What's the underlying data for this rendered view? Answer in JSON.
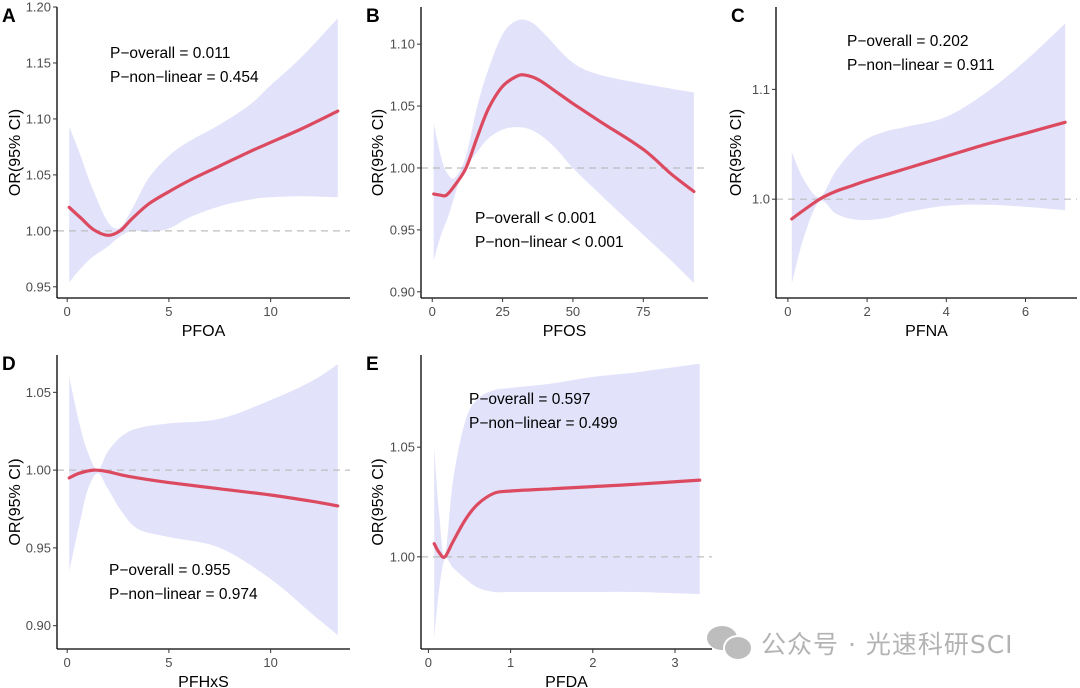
{
  "figure": {
    "ylabel": "OR(95% CI)",
    "watermark": "公众号 · 光速科研SCI",
    "colors": {
      "curve": "#dc4a60",
      "band": "#e2e2fb",
      "reference": "#bdbdbd",
      "axis": "#000000"
    }
  },
  "chart_data": [
    {
      "type": "line",
      "panel": "A",
      "xlabel": "PFOA",
      "ylabel": "OR(95% CI)",
      "xlim": [
        -0.5,
        13.9
      ],
      "ylim": [
        0.94,
        1.2
      ],
      "xticks": [
        0,
        5,
        10
      ],
      "yticks": [
        0.95,
        1.0,
        1.05,
        1.1,
        1.15,
        1.2
      ],
      "ytick_labels": [
        "0.95",
        "1.00",
        "1.05",
        "1.10",
        "1.15",
        "1.20"
      ],
      "reference_line": 1.0,
      "annotations": [
        "P−overall = 0.011",
        "P−non−linear = 0.454"
      ],
      "annotation_position": "top-left",
      "series": [
        {
          "name": "OR",
          "x": [
            0.1,
            0.7,
            1.3,
            2.0,
            2.6,
            3.2,
            4.0,
            5.0,
            6.0,
            7.5,
            9.0,
            10.0,
            11.5,
            13.3
          ],
          "y": [
            1.021,
            1.011,
            1.001,
            0.996,
            1.0,
            1.011,
            1.024,
            1.035,
            1.045,
            1.058,
            1.071,
            1.079,
            1.091,
            1.107
          ]
        },
        {
          "name": "upper 95% CI",
          "x": [
            0.1,
            0.6,
            1.2,
            2.0,
            2.6,
            3.2,
            4.0,
            5.0,
            6.0,
            7.5,
            9.0,
            10.0,
            11.5,
            13.3
          ],
          "y": [
            1.093,
            1.07,
            1.04,
            1.008,
            1.003,
            1.02,
            1.047,
            1.067,
            1.08,
            1.095,
            1.113,
            1.13,
            1.155,
            1.19
          ]
        },
        {
          "name": "lower 95% CI",
          "x": [
            0.1,
            0.6,
            1.2,
            2.0,
            2.6,
            3.2,
            4.0,
            5.0,
            6.0,
            7.5,
            9.0,
            10.0,
            11.5,
            13.3
          ],
          "y": [
            0.954,
            0.965,
            0.976,
            0.986,
            0.995,
            1.0,
            0.999,
            1.002,
            1.012,
            1.022,
            1.028,
            1.03,
            1.031,
            1.03
          ]
        }
      ]
    },
    {
      "type": "line",
      "panel": "B",
      "xlabel": "PFOS",
      "ylabel": "OR(95% CI)",
      "xlim": [
        -4,
        98
      ],
      "ylim": [
        0.895,
        1.13
      ],
      "xticks": [
        0,
        25,
        50,
        75
      ],
      "yticks": [
        0.9,
        0.95,
        1.0,
        1.05,
        1.1
      ],
      "ytick_labels": [
        "0.90",
        "0.95",
        "1.00",
        "1.05",
        "1.10"
      ],
      "reference_line": 1.0,
      "annotations": [
        "P−overall < 0.001",
        "P−non−linear < 0.001"
      ],
      "annotation_position": "bottom-left",
      "series": [
        {
          "name": "OR",
          "x": [
            0.5,
            3,
            5,
            8,
            12,
            16,
            20,
            25,
            30,
            33,
            38,
            45,
            50,
            60,
            75,
            85,
            93
          ],
          "y": [
            0.979,
            0.978,
            0.978,
            0.986,
            1.0,
            1.025,
            1.048,
            1.066,
            1.074,
            1.075,
            1.071,
            1.06,
            1.052,
            1.037,
            1.015,
            0.995,
            0.981
          ]
        },
        {
          "name": "upper 95% CI",
          "x": [
            0.5,
            3,
            5,
            8,
            12,
            16,
            20,
            25,
            30,
            35,
            40,
            50,
            60,
            75,
            85,
            93
          ],
          "y": [
            1.036,
            1.01,
            0.997,
            0.992,
            1.01,
            1.05,
            1.08,
            1.108,
            1.119,
            1.118,
            1.108,
            1.085,
            1.075,
            1.068,
            1.064,
            1.061
          ]
        },
        {
          "name": "lower 95% CI",
          "x": [
            0.5,
            3,
            6,
            9,
            12,
            16,
            20,
            25,
            30,
            35,
            40,
            45,
            50,
            60,
            75,
            85,
            93
          ],
          "y": [
            0.925,
            0.945,
            0.963,
            0.985,
            1.0,
            1.013,
            1.024,
            1.031,
            1.033,
            1.031,
            1.024,
            1.013,
            1.0,
            0.978,
            0.946,
            0.925,
            0.907
          ]
        }
      ]
    },
    {
      "type": "line",
      "panel": "C",
      "xlabel": "PFNA",
      "ylabel": "OR(95% CI)",
      "xlim": [
        -0.3,
        7.3
      ],
      "ylim": [
        0.91,
        1.175
      ],
      "xticks": [
        0,
        2,
        4,
        6
      ],
      "yticks": [
        1.0,
        1.1
      ],
      "ytick_labels": [
        "1.0",
        "1.1"
      ],
      "reference_line": 1.0,
      "annotations": [
        "P−overall = 0.202",
        "P−non−linear = 0.911"
      ],
      "annotation_position": "top-left",
      "series": [
        {
          "name": "OR",
          "x": [
            0.1,
            0.4,
            0.8,
            1.2,
            1.6,
            2.0,
            3.0,
            4.0,
            5.0,
            6.0,
            7.0
          ],
          "y": [
            0.982,
            0.99,
            1.0,
            1.007,
            1.012,
            1.017,
            1.028,
            1.039,
            1.05,
            1.06,
            1.07
          ]
        },
        {
          "name": "upper 95% CI",
          "x": [
            0.1,
            0.4,
            0.8,
            1.2,
            1.6,
            2.0,
            2.5,
            3.0,
            4.0,
            5.0,
            6.0,
            7.0
          ],
          "y": [
            1.043,
            1.018,
            1.002,
            1.025,
            1.043,
            1.055,
            1.062,
            1.066,
            1.075,
            1.097,
            1.126,
            1.16
          ]
        },
        {
          "name": "lower 95% CI",
          "x": [
            0.1,
            0.4,
            0.8,
            1.2,
            1.6,
            2.0,
            2.5,
            3.0,
            4.0,
            5.0,
            6.0,
            7.0
          ],
          "y": [
            0.923,
            0.965,
            0.998,
            0.987,
            0.982,
            0.981,
            0.983,
            0.988,
            0.994,
            0.995,
            0.993,
            0.99
          ]
        }
      ]
    },
    {
      "type": "line",
      "panel": "D",
      "xlabel": "PFHxS",
      "ylabel": "OR(95% CI)",
      "xlim": [
        -0.5,
        13.9
      ],
      "ylim": [
        0.885,
        1.074
      ],
      "xticks": [
        0,
        5,
        10
      ],
      "yticks": [
        0.9,
        0.95,
        1.0,
        1.05
      ],
      "ytick_labels": [
        "0.90",
        "0.95",
        "1.00",
        "1.05"
      ],
      "reference_line": 1.0,
      "annotations": [
        "P−overall = 0.955",
        "P−non−linear = 0.974"
      ],
      "annotation_position": "bottom-left",
      "series": [
        {
          "name": "OR",
          "x": [
            0.1,
            0.6,
            1.3,
            2.0,
            3.0,
            5.0,
            7.5,
            10.0,
            12.0,
            13.3
          ],
          "y": [
            0.995,
            0.998,
            1.0,
            0.999,
            0.996,
            0.992,
            0.988,
            0.984,
            0.98,
            0.977
          ]
        },
        {
          "name": "upper 95% CI",
          "x": [
            0.1,
            0.6,
            1.0,
            1.5,
            2.0,
            2.7,
            3.5,
            5.0,
            7.5,
            10.0,
            12.0,
            13.3
          ],
          "y": [
            1.06,
            1.03,
            1.012,
            1.0,
            1.012,
            1.022,
            1.027,
            1.03,
            1.033,
            1.045,
            1.057,
            1.068
          ]
        },
        {
          "name": "lower 95% CI",
          "x": [
            0.1,
            0.6,
            1.0,
            1.5,
            2.0,
            2.7,
            3.5,
            5.0,
            7.5,
            10.0,
            12.0,
            13.3
          ],
          "y": [
            0.935,
            0.965,
            0.987,
            0.998,
            0.988,
            0.973,
            0.962,
            0.957,
            0.95,
            0.93,
            0.908,
            0.894
          ]
        }
      ]
    },
    {
      "type": "line",
      "panel": "E",
      "xlabel": "PFDA",
      "ylabel": "OR(95% CI)",
      "xlim": [
        -0.09,
        3.45
      ],
      "ylim": [
        0.958,
        1.092
      ],
      "xticks": [
        0,
        1,
        2,
        3
      ],
      "yticks": [
        1.0,
        1.05
      ],
      "ytick_labels": [
        "1.00",
        "1.05"
      ],
      "reference_line": 1.0,
      "annotations": [
        "P−overall = 0.597",
        "P−non−linear = 0.499"
      ],
      "annotation_position": "top-left",
      "series": [
        {
          "name": "OR",
          "x": [
            0.07,
            0.13,
            0.2,
            0.3,
            0.45,
            0.6,
            0.8,
            1.0,
            1.5,
            2.0,
            2.5,
            3.3
          ],
          "y": [
            1.006,
            1.002,
            1.0,
            1.007,
            1.017,
            1.024,
            1.029,
            1.03,
            1.031,
            1.032,
            1.033,
            1.035
          ]
        },
        {
          "name": "upper 95% CI",
          "x": [
            0.07,
            0.13,
            0.2,
            0.3,
            0.45,
            0.6,
            0.8,
            1.0,
            1.5,
            2.0,
            2.5,
            3.3
          ],
          "y": [
            1.05,
            1.02,
            1.0,
            1.035,
            1.062,
            1.072,
            1.076,
            1.077,
            1.079,
            1.082,
            1.084,
            1.088
          ]
        },
        {
          "name": "lower 95% CI",
          "x": [
            0.07,
            0.13,
            0.2,
            0.3,
            0.45,
            0.6,
            0.8,
            1.0,
            1.5,
            2.0,
            2.5,
            3.3
          ],
          "y": [
            0.963,
            0.985,
            0.999,
            0.995,
            0.99,
            0.986,
            0.984,
            0.984,
            0.984,
            0.984,
            0.984,
            0.983
          ]
        }
      ]
    }
  ]
}
